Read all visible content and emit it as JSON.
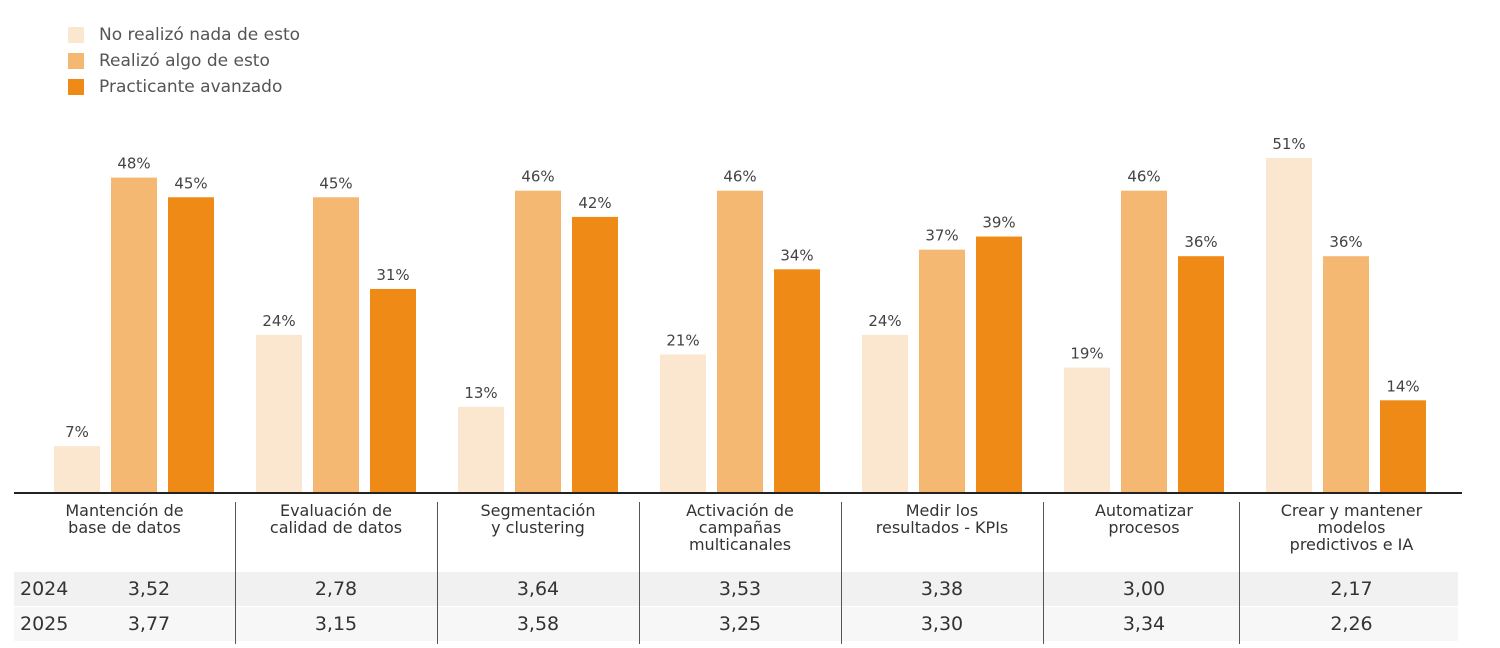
{
  "chart_data": {
    "type": "bar",
    "categories": [
      "Mantención de base de datos",
      "Evaluación de calidad de datos",
      "Segmentación y clustering",
      "Activación de campañas multicanales",
      "Medir los resultados - KPIs",
      "Automatizar procesos",
      "Crear y mantener modelos predictivos e IA"
    ],
    "series": [
      {
        "name": "No realizó nada de esto",
        "color": "#fbe6d0",
        "values": [
          7,
          24,
          13,
          21,
          24,
          19,
          51
        ],
        "labels": [
          "7%",
          "24%",
          "13%",
          "21%",
          "24%",
          "19%",
          "51%"
        ]
      },
      {
        "name": "Realizó algo de esto",
        "color": "#f5b873",
        "values": [
          48,
          45,
          46,
          46,
          37,
          46,
          36
        ],
        "labels": [
          "48%",
          "45%",
          "46%",
          "46%",
          "37%",
          "46%",
          "36%"
        ]
      },
      {
        "name": "Practicante avanzado",
        "color": "#f08a16",
        "values": [
          45,
          31,
          42,
          34,
          39,
          36,
          14
        ],
        "labels": [
          "45%",
          "31%",
          "42%",
          "34%",
          "39%",
          "36%",
          "14%"
        ]
      }
    ],
    "ylim": [
      0,
      55
    ],
    "legend_position": "top-left",
    "grid": false
  },
  "legend": [
    {
      "label": "No realizó nada de esto",
      "color": "#fbe6d0"
    },
    {
      "label": "Realizó algo de esto",
      "color": "#f5b873"
    },
    {
      "label": "Practicante avanzado",
      "color": "#f08a16"
    }
  ],
  "table": {
    "categories": [
      [
        "Mantención de",
        "base de datos"
      ],
      [
        "Evaluación de",
        "calidad de datos"
      ],
      [
        "Segmentación",
        "y clustering"
      ],
      [
        "Activación de",
        "campañas",
        "multicanales"
      ],
      [
        "Medir los",
        "resultados - KPIs"
      ],
      [
        "Automatizar",
        "procesos"
      ],
      [
        "Crear y mantener",
        "modelos",
        "predictivos e IA"
      ]
    ],
    "rows": [
      {
        "year": "2024",
        "values": [
          "3,52",
          "2,78",
          "3,64",
          "3,53",
          "3,38",
          "3,00",
          "2,17"
        ]
      },
      {
        "year": "2025",
        "values": [
          "3,77",
          "3,15",
          "3,58",
          "3,25",
          "3,30",
          "3,34",
          "2,26"
        ]
      }
    ]
  }
}
